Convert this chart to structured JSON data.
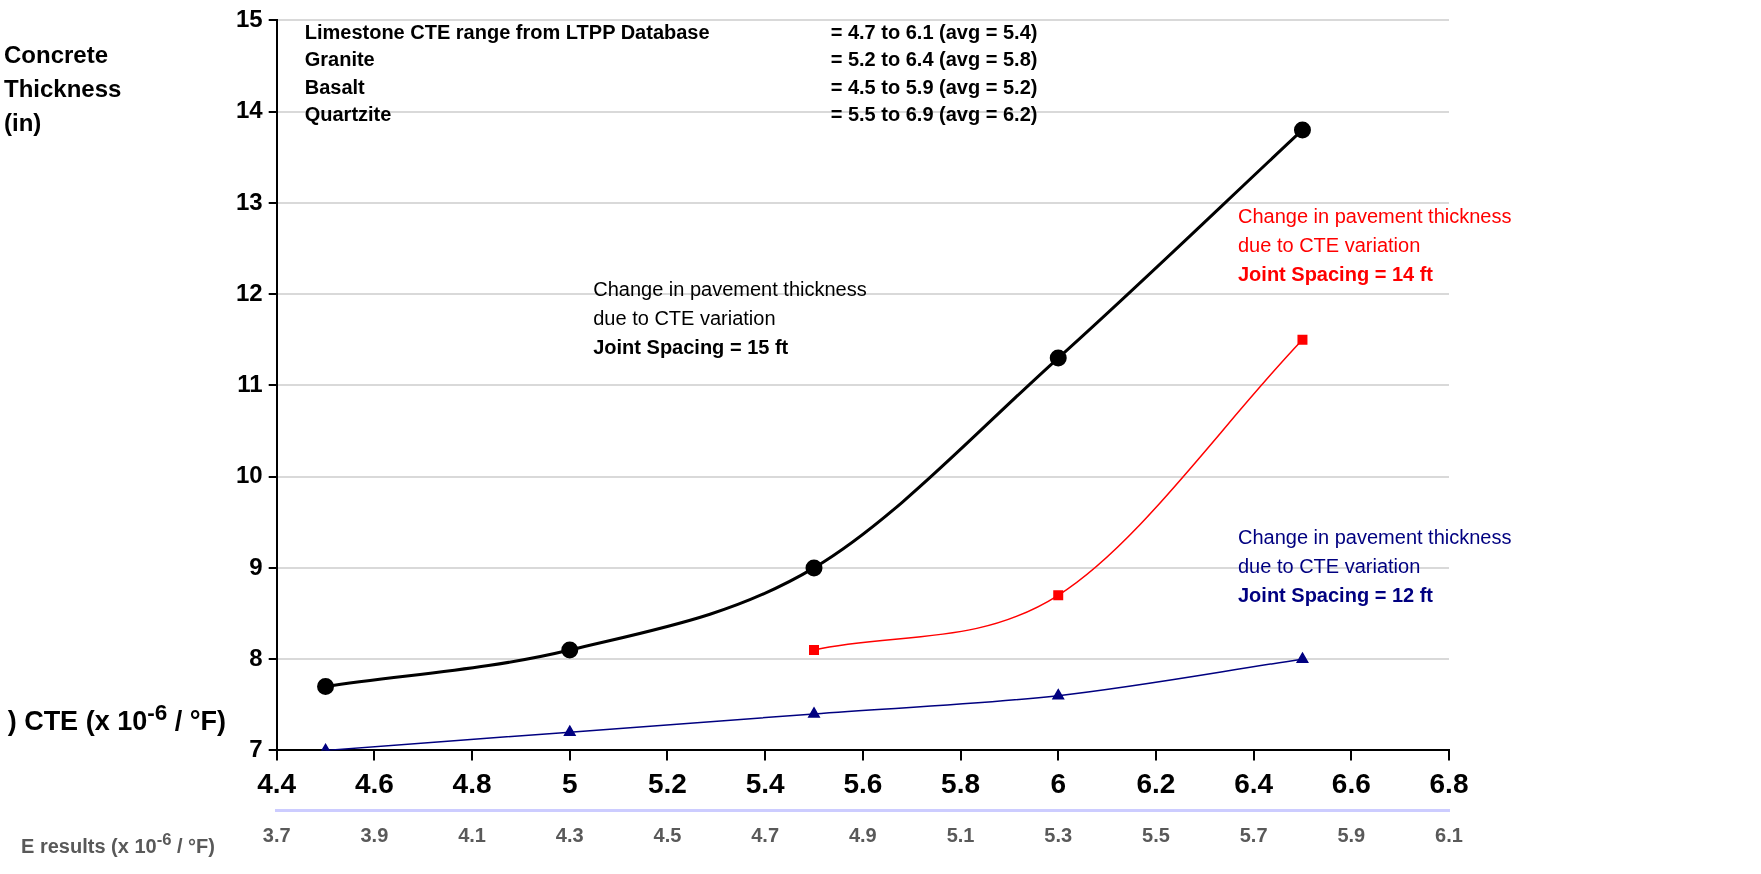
{
  "chart_data": {
    "type": "line",
    "ylabel": "Concrete\nThickness\n(in)",
    "xlabel": ") CTE (x 10$^{-6}$ / °F)",
    "x2label": "E results (x 10$^{-6}$ / °F)",
    "x": [
      4.5,
      5,
      5.5,
      6,
      6.5
    ],
    "series": [
      {
        "name": "Change in pavement thickness\ndue to CTE variation\nJoint Spacing = 15 ft",
        "color": "#000000",
        "marker": "circle",
        "values": [
          7.7,
          8.1,
          9.0,
          11.3,
          13.8
        ]
      },
      {
        "name": "Change in pavement thickness\ndue to CTE variation\nJoint Spacing = 14 ft",
        "color": "#ff0000",
        "marker": "square",
        "x": [
          5.5,
          6,
          6.5
        ],
        "values": [
          8.1,
          8.7,
          11.5
        ]
      },
      {
        "name": "Change in pavement thickness\ndue to CTE variation\nJoint Spacing = 12 ft",
        "color": "#000080",
        "marker": "triangle",
        "values": [
          7.0,
          7.2,
          7.4,
          7.6,
          8.0
        ]
      }
    ],
    "xlim": [
      4.4,
      6.8
    ],
    "xticks": [
      4.4,
      4.6,
      4.8,
      5,
      5.2,
      5.4,
      5.6,
      5.8,
      6,
      6.2,
      6.4,
      6.6,
      6.8
    ],
    "x2lim": [
      3.7,
      6.1
    ],
    "x2ticks": [
      3.7,
      3.9,
      4.1,
      4.3,
      4.5,
      4.7,
      4.9,
      5.1,
      5.3,
      5.5,
      5.7,
      5.9,
      6.1
    ],
    "ylim": [
      7,
      15
    ],
    "yticks": [
      7,
      8,
      9,
      10,
      11,
      12,
      13,
      14,
      15
    ],
    "grid": "y",
    "legend": false,
    "annotations": [
      "Limestone CTE range from LTPP Database",
      "Granite",
      "Basalt",
      "Quartzite",
      "= 4.7 to 6.1 (avg = 5.4)",
      "= 5.2 to 6.4 (avg = 5.8)",
      "= 4.5 to 5.9 (avg = 5.2)",
      "= 5.5 to 6.9 (avg = 6.2)"
    ]
  }
}
